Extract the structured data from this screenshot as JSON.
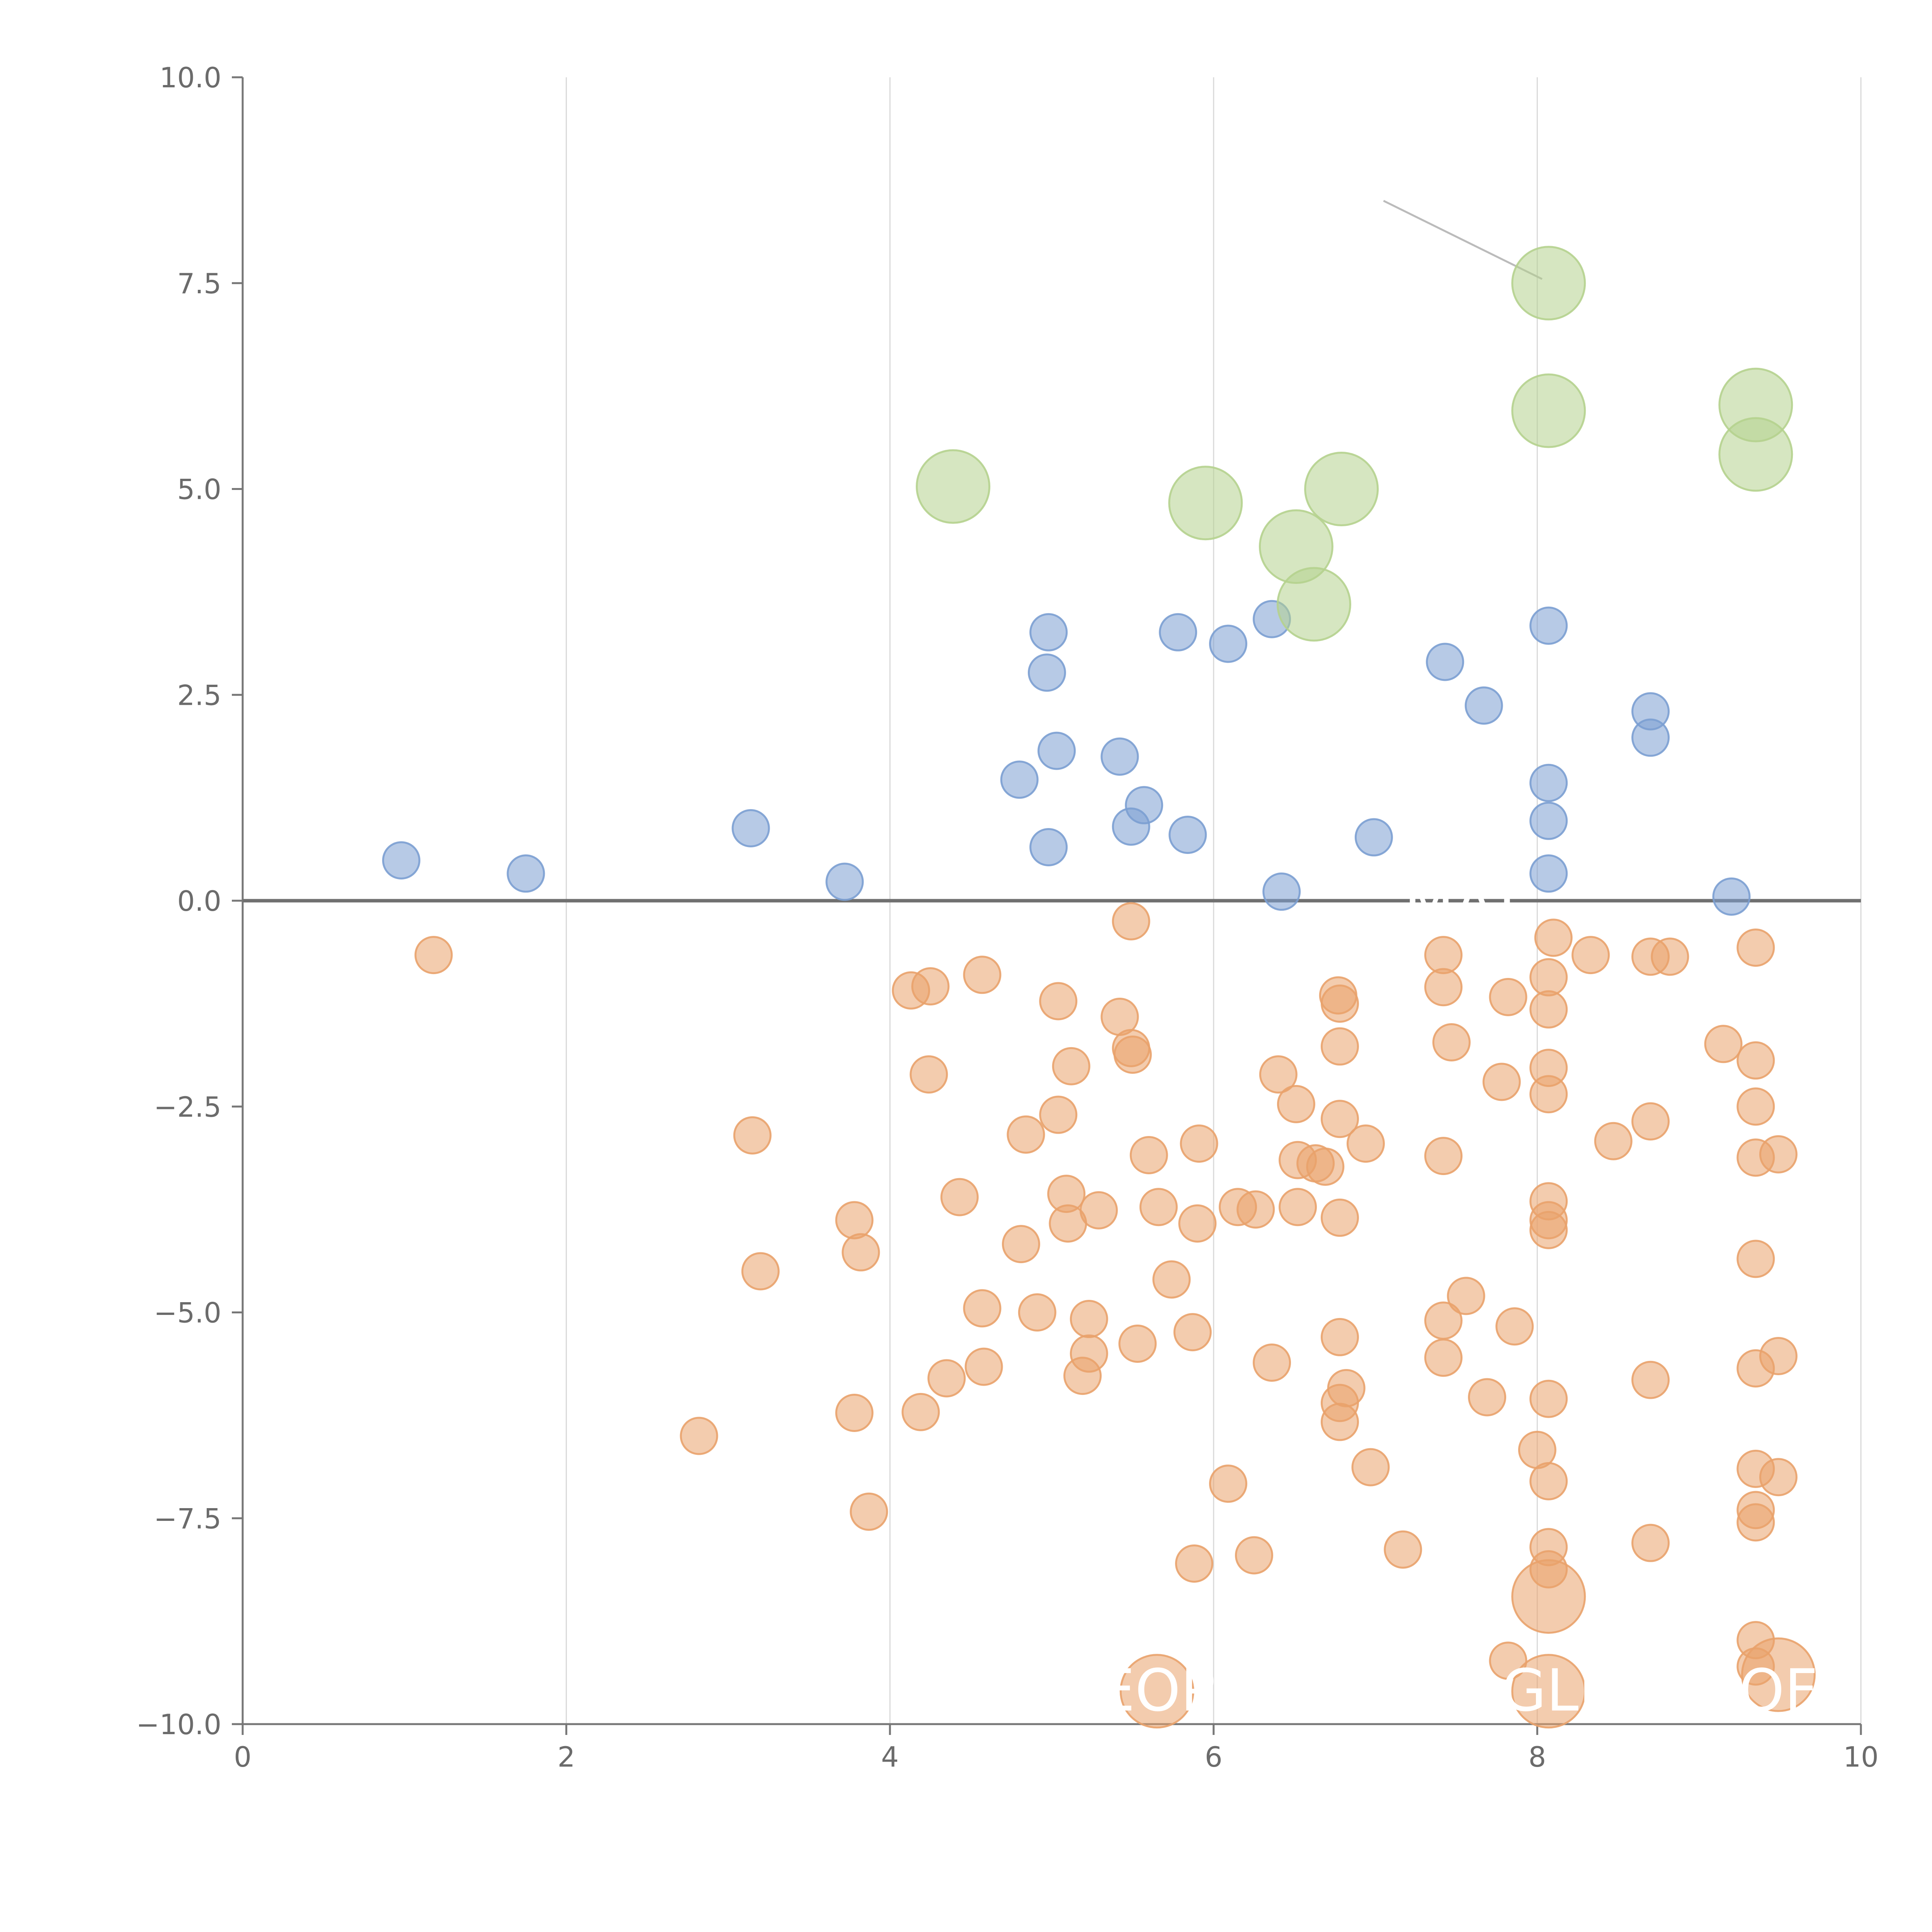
{
  "chart_data": {
    "type": "scatter",
    "title": "",
    "xlabel": "",
    "ylabel": "",
    "xlim": [
      0,
      10
    ],
    "ylim": [
      -10,
      10
    ],
    "grid": "vertical",
    "x_ticks": [
      0,
      2,
      4,
      6,
      8,
      10
    ],
    "x_tick_labels": [
      "0",
      "2",
      "4",
      "6",
      "8",
      "10"
    ],
    "y_ticks": [
      10,
      7.5,
      5,
      2.5,
      0,
      -2.5,
      -5,
      -7.5,
      -10
    ],
    "y_tick_labels": [
      "10.0",
      "7.5",
      "5.0",
      "2.5",
      "0.0",
      "−2.5",
      "−5.0",
      "−7.5",
      "−10.0"
    ],
    "colors": {
      "blue": "#7b9fd1",
      "orange": "#e9a26c",
      "green": "#b5d28e",
      "leader": "#bbbbbb"
    },
    "series": [
      {
        "name": "blue",
        "size": "small",
        "points": [
          [
            0.98,
            0.49
          ],
          [
            1.75,
            0.33
          ],
          [
            3.14,
            0.88
          ],
          [
            3.72,
            0.23
          ],
          [
            4.8,
            1.47
          ],
          [
            4.98,
            3.26
          ],
          [
            4.97,
            2.77
          ],
          [
            5.03,
            1.82
          ],
          [
            4.98,
            0.65
          ],
          [
            5.42,
            1.75
          ],
          [
            5.57,
            1.16
          ],
          [
            5.49,
            0.9
          ],
          [
            5.78,
            3.26
          ],
          [
            5.84,
            0.8
          ],
          [
            6.09,
            3.12
          ],
          [
            6.36,
            3.42
          ],
          [
            6.42,
            0.11
          ],
          [
            6.99,
            0.77
          ],
          [
            7.43,
            2.9
          ],
          [
            7.67,
            2.37
          ],
          [
            8.07,
            3.34
          ],
          [
            8.07,
            1.43
          ],
          [
            8.07,
            0.97
          ],
          [
            8.07,
            0.33
          ],
          [
            8.7,
            2.3
          ],
          [
            8.7,
            1.98
          ],
          [
            9.2,
            0.05
          ]
        ]
      },
      {
        "name": "green",
        "size": "large",
        "points": [
          [
            8.07,
            7.5
          ],
          [
            8.07,
            5.95
          ],
          [
            9.35,
            6.02
          ],
          [
            9.35,
            5.42
          ],
          [
            4.39,
            5.03
          ],
          [
            5.95,
            4.83
          ],
          [
            6.79,
            5.0
          ],
          [
            6.51,
            4.3
          ],
          [
            6.62,
            3.6
          ]
        ]
      },
      {
        "name": "orange",
        "size": "small",
        "points": [
          [
            1.18,
            -0.66
          ],
          [
            2.82,
            -6.5
          ],
          [
            3.15,
            -2.85
          ],
          [
            3.2,
            -4.5
          ],
          [
            3.78,
            -3.88
          ],
          [
            3.82,
            -4.27
          ],
          [
            3.78,
            -6.22
          ],
          [
            3.87,
            -7.42
          ],
          [
            4.13,
            -1.09
          ],
          [
            4.25,
            -1.04
          ],
          [
            4.24,
            -2.11
          ],
          [
            4.19,
            -6.21
          ],
          [
            4.35,
            -5.8
          ],
          [
            4.43,
            -3.6
          ],
          [
            4.57,
            -0.9
          ],
          [
            4.57,
            -4.95
          ],
          [
            4.58,
            -5.66
          ],
          [
            4.81,
            -4.17
          ],
          [
            4.84,
            -2.84
          ],
          [
            4.91,
            -5.0
          ],
          [
            5.04,
            -1.22
          ],
          [
            5.04,
            -2.6
          ],
          [
            5.12,
            -2.01
          ],
          [
            5.09,
            -3.56
          ],
          [
            5.1,
            -3.92
          ],
          [
            5.23,
            -5.08
          ],
          [
            5.23,
            -5.5
          ],
          [
            5.19,
            -5.77
          ],
          [
            5.29,
            -3.76
          ],
          [
            5.42,
            -1.41
          ],
          [
            5.49,
            -0.25
          ],
          [
            5.49,
            -1.79
          ],
          [
            5.5,
            -1.87
          ],
          [
            5.53,
            -5.38
          ],
          [
            5.6,
            -3.09
          ],
          [
            5.66,
            -3.72
          ],
          [
            5.74,
            -4.6
          ],
          [
            5.87,
            -5.24
          ],
          [
            5.88,
            -8.05
          ],
          [
            5.9,
            -3.92
          ],
          [
            5.91,
            -2.95
          ],
          [
            6.09,
            -7.08
          ],
          [
            6.15,
            -3.72
          ],
          [
            6.25,
            -7.95
          ],
          [
            6.26,
            -3.75
          ],
          [
            6.36,
            -5.61
          ],
          [
            6.4,
            -2.11
          ],
          [
            6.51,
            -2.47
          ],
          [
            6.52,
            -3.15
          ],
          [
            6.52,
            -3.72
          ],
          [
            6.63,
            -3.19
          ],
          [
            6.69,
            -3.23
          ],
          [
            6.77,
            -1.15
          ],
          [
            6.78,
            -1.25
          ],
          [
            6.78,
            -1.77
          ],
          [
            6.78,
            -2.65
          ],
          [
            6.78,
            -3.85
          ],
          [
            6.78,
            -5.3
          ],
          [
            6.78,
            -6.1
          ],
          [
            6.78,
            -6.33
          ],
          [
            6.82,
            -5.92
          ],
          [
            6.94,
            -2.95
          ],
          [
            6.97,
            -6.88
          ],
          [
            7.17,
            -7.88
          ],
          [
            7.42,
            -0.66
          ],
          [
            7.42,
            -1.05
          ],
          [
            7.42,
            -3.1
          ],
          [
            7.42,
            -5.1
          ],
          [
            7.42,
            -5.55
          ],
          [
            7.47,
            -1.72
          ],
          [
            7.56,
            -4.8
          ],
          [
            7.69,
            -6.03
          ],
          [
            7.78,
            -2.2
          ],
          [
            7.82,
            -1.17
          ],
          [
            7.86,
            -5.17
          ],
          [
            7.82,
            -9.23
          ],
          [
            8.0,
            -6.67
          ],
          [
            8.07,
            -0.93
          ],
          [
            8.07,
            -1.32
          ],
          [
            8.07,
            -2.03
          ],
          [
            8.07,
            -2.35
          ],
          [
            8.07,
            -3.65
          ],
          [
            8.07,
            -3.88
          ],
          [
            8.07,
            -4.0
          ],
          [
            8.07,
            -6.05
          ],
          [
            8.07,
            -7.05
          ],
          [
            8.07,
            -7.85
          ],
          [
            8.07,
            -8.12
          ],
          [
            8.1,
            -0.45
          ],
          [
            8.33,
            -0.66
          ],
          [
            8.47,
            -2.92
          ],
          [
            8.7,
            -0.68
          ],
          [
            8.7,
            -2.68
          ],
          [
            8.7,
            -5.82
          ],
          [
            8.7,
            -7.8
          ],
          [
            8.82,
            -0.68
          ],
          [
            9.15,
            -1.74
          ],
          [
            9.35,
            -0.57
          ],
          [
            9.35,
            -1.94
          ],
          [
            9.35,
            -2.5
          ],
          [
            9.35,
            -3.12
          ],
          [
            9.35,
            -4.35
          ],
          [
            9.35,
            -5.68
          ],
          [
            9.35,
            -6.9
          ],
          [
            9.35,
            -7.4
          ],
          [
            9.35,
            -7.55
          ],
          [
            9.35,
            -8.98
          ],
          [
            9.35,
            -9.3
          ],
          [
            9.49,
            -3.08
          ],
          [
            9.49,
            -5.53
          ],
          [
            9.49,
            -7.0
          ]
        ]
      },
      {
        "name": "orange-large",
        "size": "large",
        "points": [
          [
            8.07,
            -8.45
          ],
          [
            5.65,
            -9.6
          ],
          [
            8.07,
            -9.6
          ],
          [
            9.49,
            -9.4
          ]
        ]
      }
    ],
    "annotations": [
      {
        "text": "EOP",
        "x": 5.65,
        "y": -9.6
      },
      {
        "text": "GLI",
        "x": 8.07,
        "y": -9.6
      },
      {
        "text": "OF",
        "x": 9.49,
        "y": -9.6
      },
      {
        "text": "MAT",
        "x": 7.55,
        "y": -0.05
      }
    ]
  }
}
